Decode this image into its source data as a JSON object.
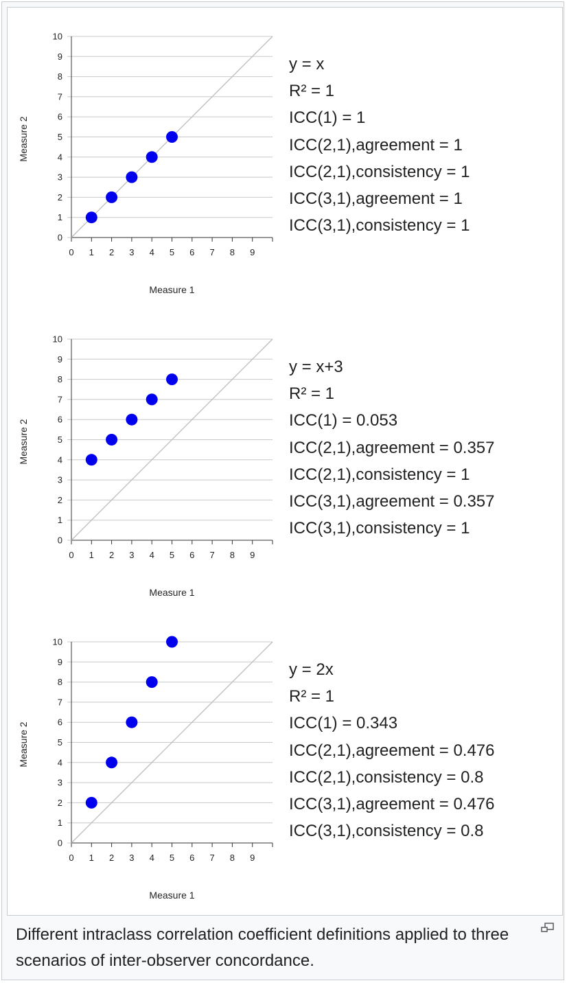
{
  "chart_data": [
    {
      "type": "scatter",
      "xlabel": "Measure 1",
      "ylabel": "Measure 2",
      "xlim": [
        0,
        10
      ],
      "ylim": [
        0,
        10
      ],
      "x_ticks": [
        0,
        1,
        2,
        3,
        4,
        5,
        6,
        7,
        8,
        9
      ],
      "y_ticks": [
        0,
        1,
        2,
        3,
        4,
        5,
        6,
        7,
        8,
        9,
        10
      ],
      "grid": true,
      "reference_line": "y = x",
      "points": [
        {
          "x": 1,
          "y": 1
        },
        {
          "x": 2,
          "y": 2
        },
        {
          "x": 3,
          "y": 3
        },
        {
          "x": 4,
          "y": 4
        },
        {
          "x": 5,
          "y": 5
        }
      ],
      "point_color": "#0000ee",
      "stats": [
        "y = x",
        "R² = 1",
        "ICC(1) = 1",
        "ICC(2,1),agreement = 1",
        "ICC(2,1),consistency = 1",
        "ICC(3,1),agreement = 1",
        "ICC(3,1),consistency = 1"
      ]
    },
    {
      "type": "scatter",
      "xlabel": "Measure 1",
      "ylabel": "Measure 2",
      "xlim": [
        0,
        10
      ],
      "ylim": [
        0,
        10
      ],
      "x_ticks": [
        0,
        1,
        2,
        3,
        4,
        5,
        6,
        7,
        8,
        9
      ],
      "y_ticks": [
        0,
        1,
        2,
        3,
        4,
        5,
        6,
        7,
        8,
        9,
        10
      ],
      "grid": true,
      "reference_line": "y = x",
      "points": [
        {
          "x": 1,
          "y": 4
        },
        {
          "x": 2,
          "y": 5
        },
        {
          "x": 3,
          "y": 6
        },
        {
          "x": 4,
          "y": 7
        },
        {
          "x": 5,
          "y": 8
        }
      ],
      "point_color": "#0000ee",
      "stats": [
        "y = x+3",
        "R² = 1",
        "ICC(1) = 0.053",
        "ICC(2,1),agreement = 0.357",
        "ICC(2,1),consistency = 1",
        "ICC(3,1),agreement = 0.357",
        "ICC(3,1),consistency = 1"
      ]
    },
    {
      "type": "scatter",
      "xlabel": "Measure 1",
      "ylabel": "Measure 2",
      "xlim": [
        0,
        10
      ],
      "ylim": [
        0,
        10
      ],
      "x_ticks": [
        0,
        1,
        2,
        3,
        4,
        5,
        6,
        7,
        8,
        9
      ],
      "y_ticks": [
        0,
        1,
        2,
        3,
        4,
        5,
        6,
        7,
        8,
        9,
        10
      ],
      "grid": true,
      "reference_line": "y = x",
      "points": [
        {
          "x": 1,
          "y": 2
        },
        {
          "x": 2,
          "y": 4
        },
        {
          "x": 3,
          "y": 6
        },
        {
          "x": 4,
          "y": 8
        },
        {
          "x": 5,
          "y": 10
        }
      ],
      "point_color": "#0000ee",
      "stats": [
        "y = 2x",
        "R² = 1",
        "ICC(1) = 0.343",
        "ICC(2,1),agreement = 0.476",
        "ICC(2,1),consistency = 0.8",
        "ICC(3,1),agreement = 0.476",
        "ICC(3,1),consistency = 0.8"
      ]
    }
  ],
  "caption": "Different intraclass correlation coefficient definitions applied to three scenarios of inter-observer concordance.",
  "icons": {
    "magnify": "enlarge-icon"
  },
  "colors": {
    "grid": "#c8c8c8",
    "axis": "#333333",
    "reference_line": "#bbbbbb",
    "point": "#0000ee"
  }
}
